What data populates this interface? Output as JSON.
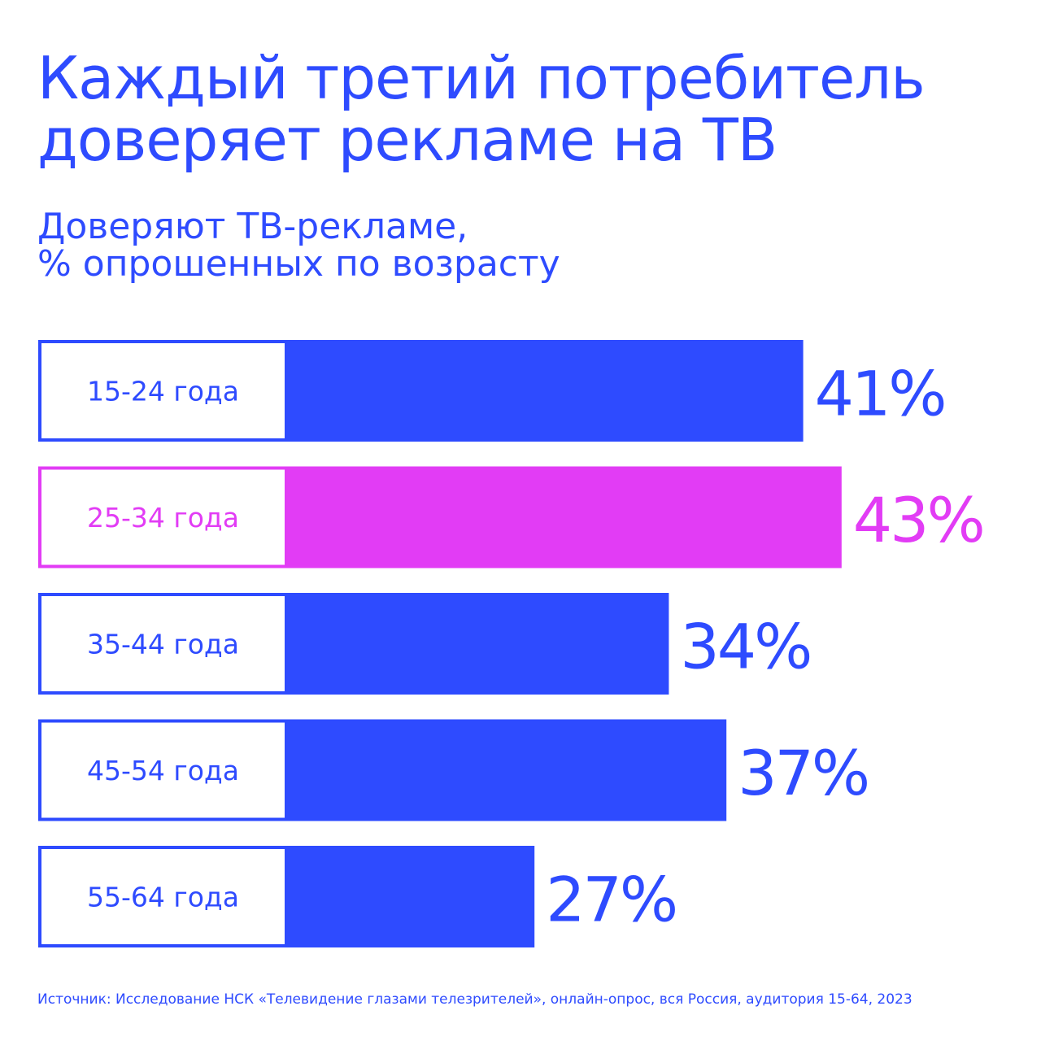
{
  "title_lines": [
    "Каждый третий потребитель",
    "доверяет рекламе на ТВ"
  ],
  "subtitle_lines": [
    "Доверяют ТВ-рекламе,",
    "% опрошенных по возрасту"
  ],
  "source": "Источник: Исследование НСК  «Телевидение глазами телезрителей», онлайн-опрос, вся Россия, аудитория 15-64, 2023",
  "colors": {
    "primary": "#2e4bff",
    "highlight": "#e23cf5",
    "background": "#ffffff"
  },
  "chart_data": {
    "type": "bar",
    "orientation": "horizontal",
    "categories": [
      "15-24 года",
      "25-34 года",
      "35-44 года",
      "45-54 года",
      "55-64 года"
    ],
    "values": [
      41,
      43,
      34,
      37,
      27
    ],
    "value_labels": [
      "41%",
      "43%",
      "34%",
      "37%",
      "27%"
    ],
    "highlighted_category": "25-34 года",
    "title": "Каждый третий потребитель доверяет рекламе на ТВ",
    "subtitle": "Доверяют ТВ-рекламе, % опрошенных по возрасту",
    "unit": "%",
    "grid": false,
    "legend": "none"
  }
}
